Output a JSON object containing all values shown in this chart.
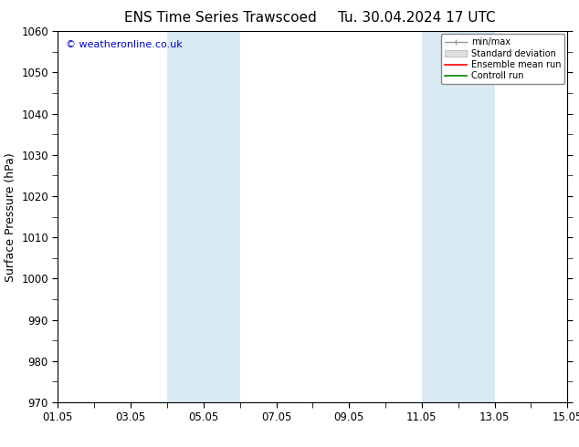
{
  "title_left": "ENS Time Series Trawscoed",
  "title_right": "Tu. 30.04.2024 17 UTC",
  "ylabel": "Surface Pressure (hPa)",
  "ylim": [
    970,
    1060
  ],
  "yticks": [
    970,
    980,
    990,
    1000,
    1010,
    1020,
    1030,
    1040,
    1050,
    1060
  ],
  "xlim": [
    0,
    14
  ],
  "xtick_labels": [
    "01.05",
    "03.05",
    "05.05",
    "07.05",
    "09.05",
    "11.05",
    "13.05",
    "15.05"
  ],
  "xtick_positions": [
    0,
    2,
    4,
    6,
    8,
    10,
    12,
    14
  ],
  "shaded_bands": [
    {
      "xmin": 3.0,
      "xmax": 5.0
    },
    {
      "xmin": 10.0,
      "xmax": 11.0
    },
    {
      "xmin": 11.0,
      "xmax": 12.0
    }
  ],
  "shade_color": "#daeaf5",
  "background_color": "#ffffff",
  "copyright_text": "© weatheronline.co.uk",
  "copyright_color": "#0000cc",
  "legend_entries": [
    "min/max",
    "Standard deviation",
    "Ensemble mean run",
    "Controll run"
  ],
  "legend_colors_line": [
    "#999999",
    "#cccccc",
    "#ff0000",
    "#008000"
  ],
  "title_fontsize": 11,
  "axis_fontsize": 9,
  "tick_fontsize": 8.5
}
